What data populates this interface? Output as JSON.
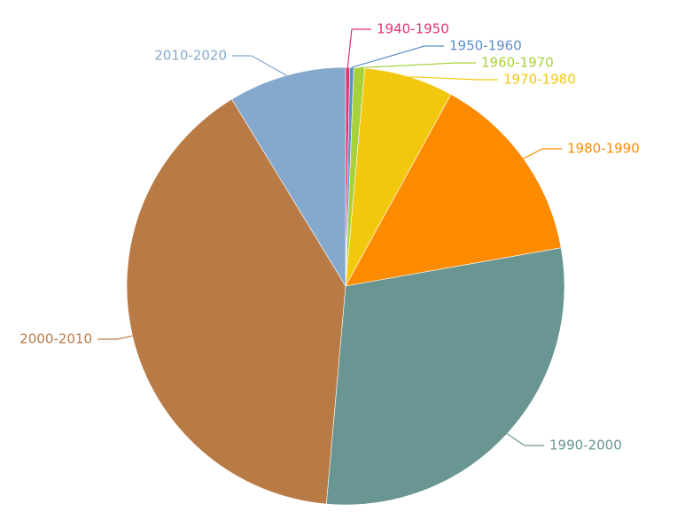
{
  "chart_data": {
    "type": "pie",
    "categories": [
      "1940-1950",
      "1950-1960",
      "1960-1970",
      "1970-1980",
      "1980-1990",
      "1990-2000",
      "2000-2010",
      "2010-2020"
    ],
    "values": [
      0.3,
      0.3,
      0.8,
      6.6,
      14.2,
      29.2,
      39.9,
      8.7
    ],
    "colors": [
      "#e8306f",
      "#5d8fc8",
      "#a6d13b",
      "#f2c80f",
      "#fd8b00",
      "#699592",
      "#b97b46",
      "#85a9cd"
    ]
  }
}
